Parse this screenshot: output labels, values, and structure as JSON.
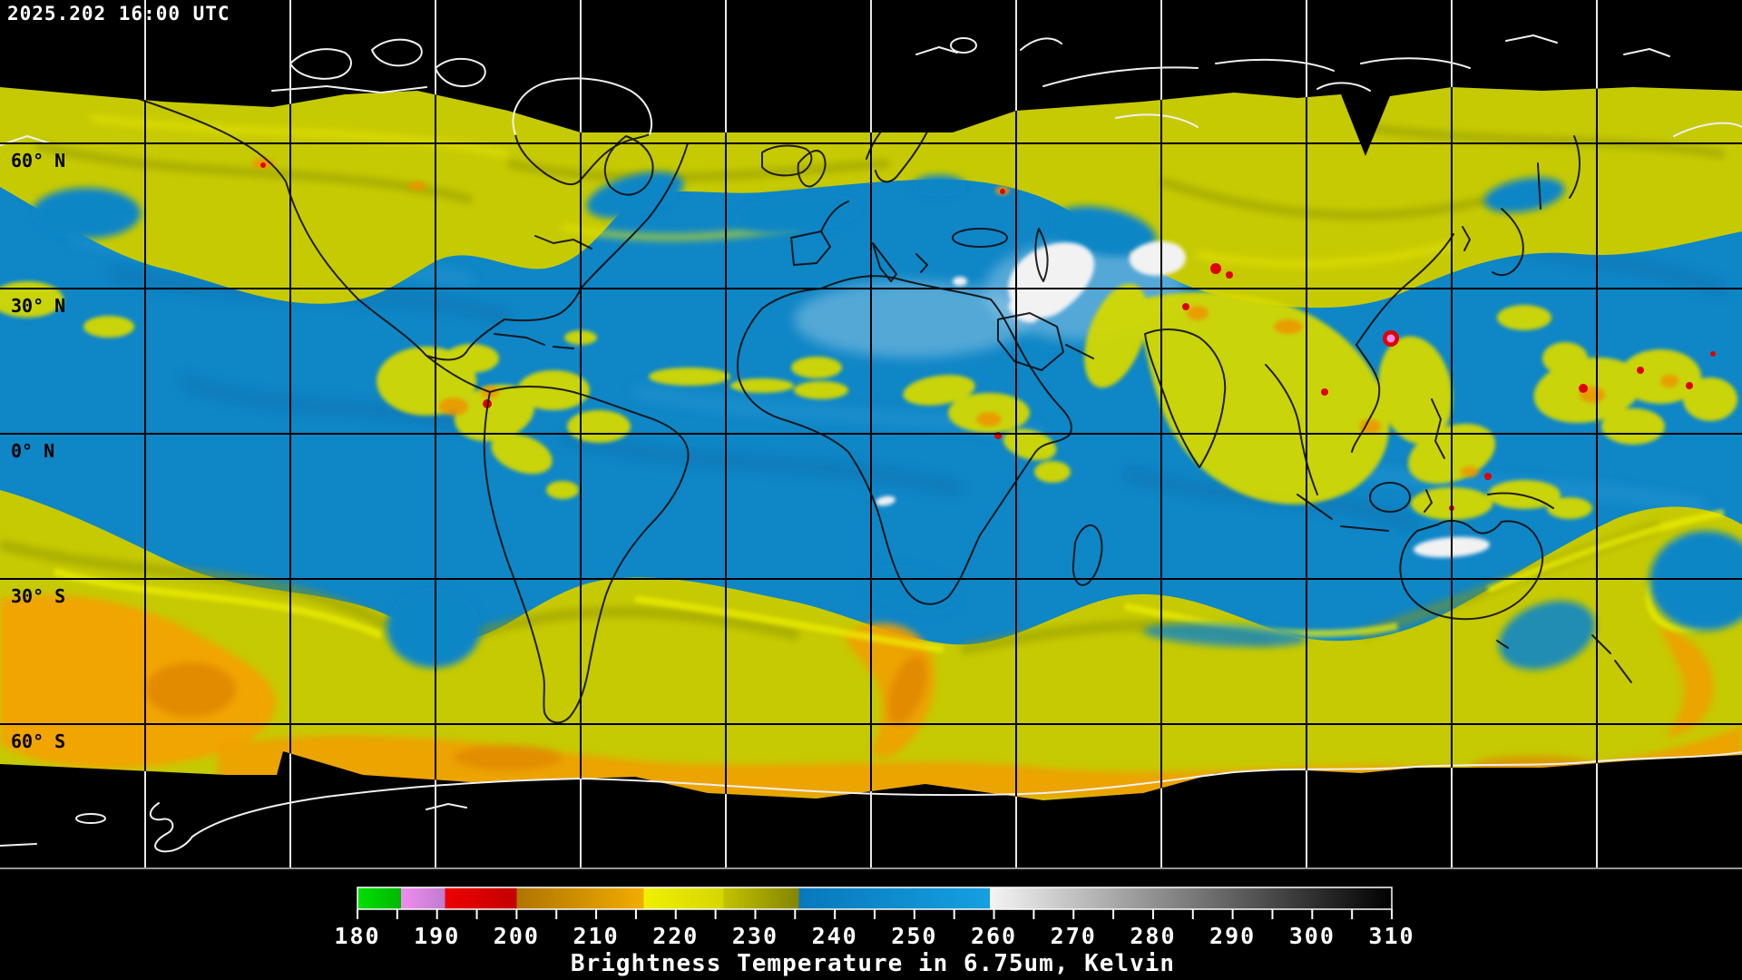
{
  "header": {
    "timestamp": "2025.202 16:00 UTC"
  },
  "map": {
    "projection": "equirectangular global composite",
    "latitude_labels": [
      {
        "text": "60° N",
        "deg": 60
      },
      {
        "text": "30° N",
        "deg": 30
      },
      {
        "text": "0° N",
        "deg": 0
      },
      {
        "text": "30° S",
        "deg": -30
      },
      {
        "text": "60° S",
        "deg": -60
      }
    ],
    "grid_color_over_data": "#000000",
    "grid_color_over_space": "#ffffff",
    "palette_colors": {
      "moist_upper_troposphere_blue": "#0f86c6",
      "dry_yellow": "#c6ca02",
      "olive_shading": "#8f9400",
      "warm_orange": "#f0a202",
      "cold_cloud_red": "#e00000",
      "coldest_cloud_violet": "#ee82ee",
      "warm_surface_white": "#f2f2f2",
      "no_data_black": "#000000",
      "coastline_over_data": "#000000",
      "coastline_over_space": "#ffffff"
    }
  },
  "colorbar": {
    "title": "Brightness Temperature in 6.75um, Kelvin",
    "range_k": [
      180,
      310
    ],
    "major_tick_labels": [
      180,
      190,
      200,
      210,
      220,
      230,
      240,
      250,
      260,
      270,
      280,
      290,
      300,
      310
    ],
    "minor_tick_step_k": 5,
    "gradient_stops": [
      {
        "k": 180,
        "color": "#00e000"
      },
      {
        "k": 185.5,
        "color": "#00b800"
      },
      {
        "k": 185.5,
        "color": "#f08cf0"
      },
      {
        "k": 191,
        "color": "#c07cd0"
      },
      {
        "k": 191,
        "color": "#ee0000"
      },
      {
        "k": 200,
        "color": "#c40000"
      },
      {
        "k": 200,
        "color": "#b07400"
      },
      {
        "k": 216,
        "color": "#f2ac00"
      },
      {
        "k": 216,
        "color": "#f0f000"
      },
      {
        "k": 226,
        "color": "#d6d600"
      },
      {
        "k": 226,
        "color": "#c2c200"
      },
      {
        "k": 235.5,
        "color": "#848400"
      },
      {
        "k": 235.5,
        "color": "#0878bc"
      },
      {
        "k": 259.5,
        "color": "#14a0e0"
      },
      {
        "k": 259.5,
        "color": "#f4f4f4"
      },
      {
        "k": 310,
        "color": "#000000"
      }
    ]
  }
}
